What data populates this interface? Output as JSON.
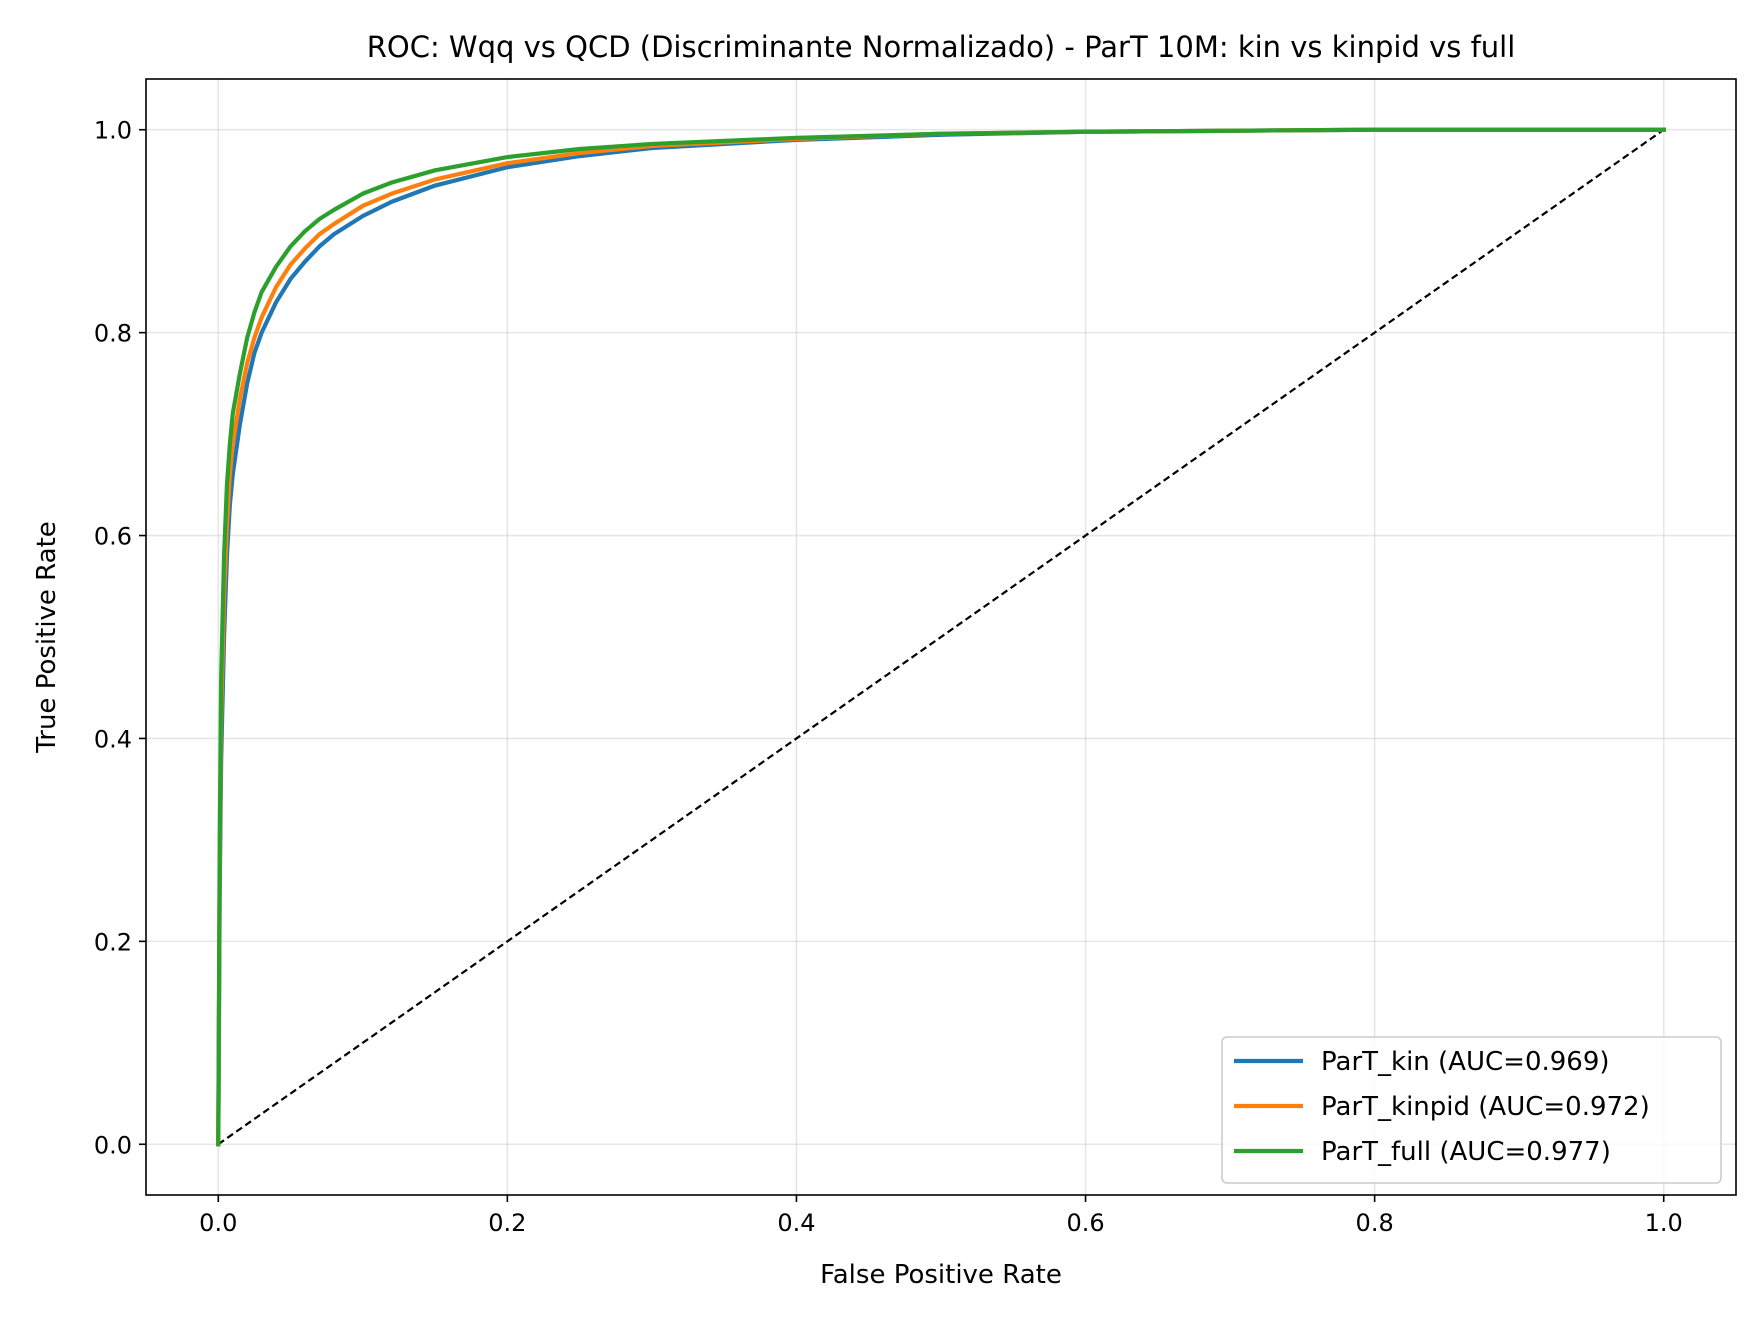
{
  "chart_data": {
    "type": "line",
    "title": "ROC: Wqq vs QCD (Discriminante Normalizado) - ParT 10M: kin vs kinpid vs full",
    "xlabel": "False Positive Rate",
    "ylabel": "True Positive Rate",
    "xlim": [
      -0.05,
      1.05
    ],
    "ylim": [
      -0.05,
      1.05
    ],
    "xticks": [
      0.0,
      0.2,
      0.4,
      0.6,
      0.8,
      1.0
    ],
    "xtick_labels": [
      "0.0",
      "0.2",
      "0.4",
      "0.6",
      "0.8",
      "1.0"
    ],
    "yticks": [
      0.0,
      0.2,
      0.4,
      0.6,
      0.8,
      1.0
    ],
    "ytick_labels": [
      "0.0",
      "0.2",
      "0.4",
      "0.6",
      "0.8",
      "1.0"
    ],
    "grid": true,
    "legend_position": "bottom-right",
    "series": [
      {
        "name": "ParT_kin (AUC=0.969)",
        "color": "#1f77b4",
        "x": [
          0.0,
          0.001,
          0.002,
          0.004,
          0.006,
          0.008,
          0.01,
          0.015,
          0.02,
          0.025,
          0.03,
          0.04,
          0.05,
          0.06,
          0.07,
          0.08,
          0.1,
          0.12,
          0.15,
          0.2,
          0.25,
          0.3,
          0.4,
          0.5,
          0.6,
          0.7,
          0.8,
          0.9,
          1.0
        ],
        "y": [
          0.0,
          0.25,
          0.38,
          0.5,
          0.58,
          0.63,
          0.66,
          0.71,
          0.75,
          0.78,
          0.8,
          0.83,
          0.853,
          0.87,
          0.885,
          0.897,
          0.915,
          0.929,
          0.945,
          0.963,
          0.974,
          0.982,
          0.99,
          0.995,
          0.998,
          0.999,
          1.0,
          1.0,
          1.0
        ]
      },
      {
        "name": "ParT_kinpid (AUC=0.972)",
        "color": "#ff7f0e",
        "x": [
          0.0,
          0.001,
          0.002,
          0.004,
          0.006,
          0.008,
          0.01,
          0.015,
          0.02,
          0.025,
          0.03,
          0.04,
          0.05,
          0.06,
          0.07,
          0.08,
          0.1,
          0.12,
          0.15,
          0.2,
          0.25,
          0.3,
          0.4,
          0.5,
          0.6,
          0.7,
          0.8,
          0.9,
          1.0
        ],
        "y": [
          0.0,
          0.28,
          0.42,
          0.54,
          0.61,
          0.66,
          0.69,
          0.735,
          0.77,
          0.795,
          0.815,
          0.845,
          0.867,
          0.883,
          0.897,
          0.907,
          0.925,
          0.937,
          0.951,
          0.967,
          0.977,
          0.984,
          0.991,
          0.996,
          0.998,
          0.999,
          1.0,
          1.0,
          1.0
        ]
      },
      {
        "name": "ParT_full (AUC=0.977)",
        "color": "#2ca02c",
        "x": [
          0.0,
          0.001,
          0.002,
          0.004,
          0.006,
          0.008,
          0.01,
          0.015,
          0.02,
          0.025,
          0.03,
          0.04,
          0.05,
          0.06,
          0.07,
          0.08,
          0.1,
          0.12,
          0.15,
          0.2,
          0.25,
          0.3,
          0.4,
          0.5,
          0.6,
          0.7,
          0.8,
          0.9,
          1.0
        ],
        "y": [
          0.0,
          0.3,
          0.46,
          0.58,
          0.65,
          0.69,
          0.72,
          0.76,
          0.795,
          0.82,
          0.84,
          0.865,
          0.885,
          0.9,
          0.912,
          0.921,
          0.937,
          0.948,
          0.96,
          0.973,
          0.981,
          0.986,
          0.992,
          0.996,
          0.998,
          0.999,
          1.0,
          1.0,
          1.0
        ]
      }
    ],
    "reference_line": {
      "x": [
        0.0,
        1.0
      ],
      "y": [
        0.0,
        1.0
      ],
      "color": "#000000",
      "style": "dashed"
    }
  }
}
